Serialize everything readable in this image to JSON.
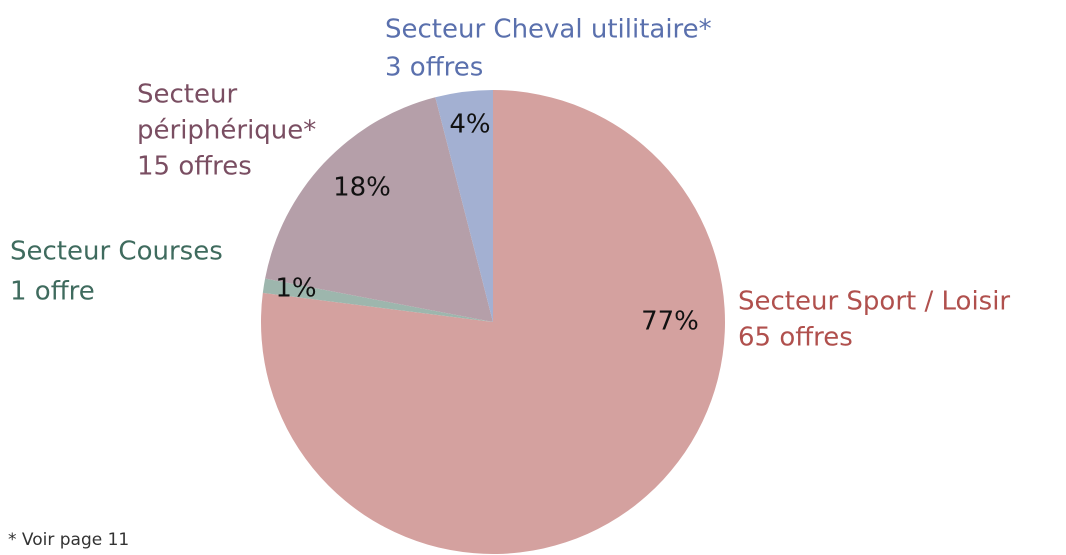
{
  "chart_data": {
    "type": "pie",
    "categories": [
      [
        "Secteur Sport / Loisir"
      ],
      [
        "Secteur Courses"
      ],
      [
        "Secteur",
        "périphérique*"
      ],
      [
        "Secteur Cheval utilitaire*"
      ]
    ],
    "values": [
      77,
      1,
      18,
      4
    ],
    "value_labels": [
      "77%",
      "1%",
      "18%",
      "4%"
    ],
    "sublabels": [
      "65 offres",
      "1 offre",
      "15 offres",
      "3 offres"
    ],
    "colors": [
      "#d4a19f",
      "#9db6ad",
      "#b59fa9",
      "#a3b0d2"
    ],
    "label_colors": [
      "#b0504d",
      "#3f6b5e",
      "#7a4e62",
      "#5a70ad"
    ],
    "footnote": "* Voir page 11"
  }
}
